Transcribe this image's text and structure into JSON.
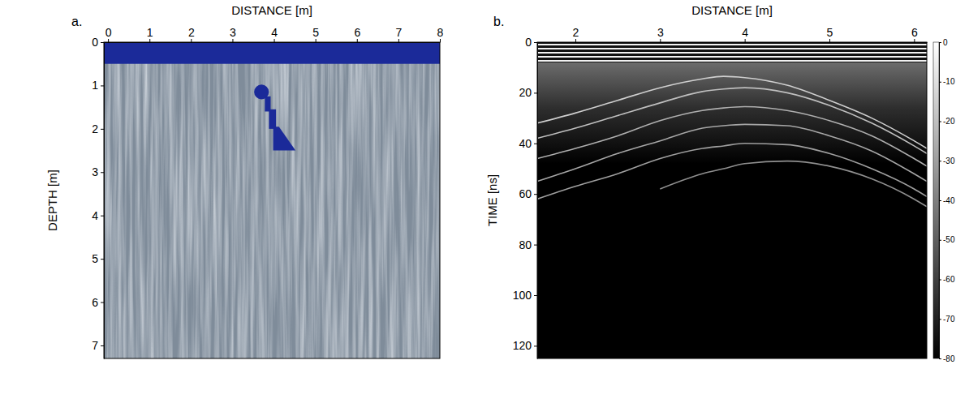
{
  "chart_data": [
    {
      "type": "model",
      "panel": "a.",
      "x_label": "DISTANCE [m]",
      "y_label": "DEPTH [m]",
      "xlim": [
        -0.1,
        8
      ],
      "ylim": [
        0,
        7.3
      ],
      "xticks": [
        0,
        1,
        2,
        3,
        4,
        5,
        6,
        7,
        8
      ],
      "yticks": [
        0,
        1,
        2,
        3,
        4,
        5,
        6,
        7
      ],
      "color": "#1b2a99",
      "layer": {
        "x": [
          -0.1,
          8
        ],
        "depth": [
          0,
          0.5
        ]
      },
      "objects": [
        {
          "type": "circle",
          "x": 3.7,
          "depth": 1.15,
          "radius": 0.17
        },
        {
          "type": "polygon",
          "x": [
            3.78,
            3.92,
            3.92,
            3.78
          ],
          "depth": [
            1.25,
            1.25,
            1.6,
            1.6
          ]
        },
        {
          "type": "polygon",
          "x": [
            3.88,
            4.05,
            4.05,
            3.88
          ],
          "depth": [
            1.55,
            1.55,
            2.0,
            2.0
          ]
        },
        {
          "type": "polygon",
          "x": [
            3.98,
            4.12,
            4.52,
            3.98
          ],
          "depth": [
            1.95,
            1.95,
            2.5,
            2.5
          ]
        }
      ]
    },
    {
      "type": "radargram",
      "panel": "b.",
      "x_label": "DISTANCE [m]",
      "y_label": "TIME [ns]",
      "xlim": [
        1.55,
        6.15
      ],
      "ylim": [
        0,
        125
      ],
      "xticks": [
        2,
        3,
        4,
        5,
        6
      ],
      "yticks": [
        0,
        20,
        40,
        60,
        80,
        100,
        120
      ],
      "direct_wave": [
        0,
        8
      ],
      "x": [
        1.55,
        2,
        2.5,
        3,
        3.5,
        3.75,
        4,
        4.5,
        5,
        5.5,
        6,
        6.15
      ],
      "series": [
        {
          "level": -15,
          "values": [
            32,
            28,
            23,
            18,
            14.5,
            13.5,
            14,
            17,
            23,
            30,
            39,
            42
          ]
        },
        {
          "level": -20,
          "values": [
            38,
            34,
            29,
            24,
            19.5,
            18.5,
            18,
            20,
            25,
            32,
            41,
            44
          ]
        },
        {
          "level": -25,
          "values": [
            46,
            42,
            37,
            31,
            27,
            26,
            25.5,
            27,
            31,
            37,
            46,
            49
          ]
        },
        {
          "level": -28,
          "values": [
            55,
            50,
            44,
            39,
            34,
            33,
            32.5,
            33,
            37,
            43,
            52,
            55
          ]
        },
        {
          "level": -30,
          "values": [
            62,
            57,
            52,
            46,
            42,
            41,
            40,
            40.5,
            44,
            50,
            58,
            61
          ]
        },
        {
          "level": -35,
          "values": [
            null,
            null,
            null,
            58,
            52,
            50,
            48,
            47,
            49,
            54,
            62,
            65
          ]
        }
      ],
      "colorbar": {
        "range": [
          0,
          -80
        ],
        "ticks": [
          0,
          -10,
          -20,
          -30,
          -40,
          -50,
          -60,
          -70,
          -80
        ]
      }
    }
  ]
}
